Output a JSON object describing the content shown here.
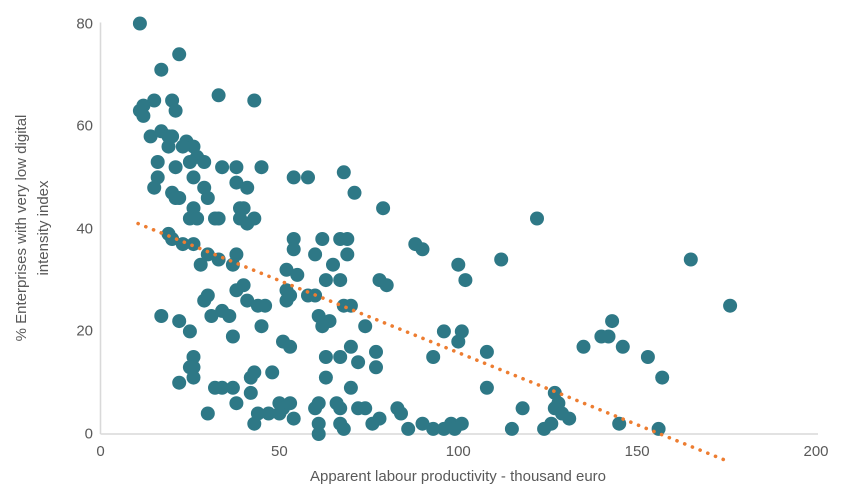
{
  "chart_data": {
    "type": "scatter",
    "title": "",
    "xlabel": "Apparent labour productivity - thousand euro",
    "ylabel": "% Enterprises with very low digital intensity index",
    "ylabel_line1": "% Enterprises with very low digital",
    "ylabel_line2": "intensity index",
    "xlim": [
      0,
      200
    ],
    "ylim": [
      0,
      80
    ],
    "x_ticks": [
      {
        "value": 0,
        "label": "0"
      },
      {
        "value": 50,
        "label": "50"
      },
      {
        "value": 100,
        "label": "100"
      },
      {
        "value": 150,
        "label": "150"
      },
      {
        "value": 200,
        "label": "200"
      }
    ],
    "y_ticks": [
      {
        "value": 0,
        "label": "0"
      },
      {
        "value": 20,
        "label": "20"
      },
      {
        "value": 40,
        "label": "40"
      },
      {
        "value": 60,
        "label": "60"
      },
      {
        "value": 80,
        "label": "80"
      }
    ],
    "grid": false,
    "legend_position": "none",
    "colors": {
      "points": "#2e7886",
      "trendline": "#ed7d31",
      "axis_line": "#d9d9d9",
      "text": "#595959",
      "background": "#ffffff"
    },
    "point_radius_px": 7,
    "points": [
      [
        11,
        80
      ],
      [
        22,
        74
      ],
      [
        17,
        71
      ],
      [
        15,
        65
      ],
      [
        12,
        64
      ],
      [
        11,
        63
      ],
      [
        12,
        62
      ],
      [
        20,
        65
      ],
      [
        21,
        63
      ],
      [
        33,
        66
      ],
      [
        43,
        65
      ],
      [
        14,
        58
      ],
      [
        17,
        59
      ],
      [
        19,
        58
      ],
      [
        20,
        58
      ],
      [
        24,
        57
      ],
      [
        26,
        56
      ],
      [
        19,
        56
      ],
      [
        23,
        56
      ],
      [
        27,
        54
      ],
      [
        16,
        53
      ],
      [
        21,
        52
      ],
      [
        25,
        53
      ],
      [
        29,
        53
      ],
      [
        34,
        52
      ],
      [
        38,
        52
      ],
      [
        45,
        52
      ],
      [
        16,
        50
      ],
      [
        26,
        50
      ],
      [
        38,
        49
      ],
      [
        41,
        48
      ],
      [
        15,
        48
      ],
      [
        20,
        47
      ],
      [
        21,
        46
      ],
      [
        22,
        46
      ],
      [
        29,
        48
      ],
      [
        30,
        46
      ],
      [
        26,
        44
      ],
      [
        25,
        42
      ],
      [
        27,
        42
      ],
      [
        32,
        42
      ],
      [
        33,
        42
      ],
      [
        39,
        44
      ],
      [
        40,
        44
      ],
      [
        39,
        42
      ],
      [
        41,
        41
      ],
      [
        43,
        42
      ],
      [
        19,
        39
      ],
      [
        20,
        38
      ],
      [
        23,
        37
      ],
      [
        26,
        37
      ],
      [
        30,
        35
      ],
      [
        33,
        34
      ],
      [
        38,
        35
      ],
      [
        28,
        33
      ],
      [
        37,
        33
      ],
      [
        17,
        23
      ],
      [
        22,
        22
      ],
      [
        25,
        20
      ],
      [
        29,
        26
      ],
      [
        30,
        27
      ],
      [
        31,
        23
      ],
      [
        34,
        24
      ],
      [
        36,
        23
      ],
      [
        40,
        29
      ],
      [
        38,
        28
      ],
      [
        41,
        26
      ],
      [
        44,
        25
      ],
      [
        46,
        25
      ],
      [
        45,
        21
      ],
      [
        37,
        19
      ],
      [
        26,
        15
      ],
      [
        26,
        13
      ],
      [
        25,
        13
      ],
      [
        22,
        10
      ],
      [
        26,
        11
      ],
      [
        32,
        9
      ],
      [
        34,
        9
      ],
      [
        37,
        9
      ],
      [
        38,
        6
      ],
      [
        30,
        4
      ],
      [
        42,
        11
      ],
      [
        43,
        12
      ],
      [
        48,
        12
      ],
      [
        42,
        8
      ],
      [
        44,
        4
      ],
      [
        47,
        4
      ],
      [
        43,
        2
      ],
      [
        54,
        50
      ],
      [
        58,
        50
      ],
      [
        68,
        51
      ],
      [
        71,
        47
      ],
      [
        79,
        44
      ],
      [
        54,
        38
      ],
      [
        54,
        36
      ],
      [
        62,
        38
      ],
      [
        67,
        38
      ],
      [
        69,
        38
      ],
      [
        60,
        35
      ],
      [
        69,
        35
      ],
      [
        65,
        33
      ],
      [
        52,
        32
      ],
      [
        55,
        31
      ],
      [
        63,
        30
      ],
      [
        67,
        30
      ],
      [
        78,
        30
      ],
      [
        80,
        29
      ],
      [
        88,
        37
      ],
      [
        90,
        36
      ],
      [
        52,
        28
      ],
      [
        52,
        26
      ],
      [
        53,
        27
      ],
      [
        58,
        27
      ],
      [
        60,
        27
      ],
      [
        68,
        25
      ],
      [
        70,
        25
      ],
      [
        61,
        23
      ],
      [
        64,
        22
      ],
      [
        62,
        21
      ],
      [
        74,
        21
      ],
      [
        51,
        18
      ],
      [
        53,
        17
      ],
      [
        63,
        15
      ],
      [
        67,
        15
      ],
      [
        70,
        17
      ],
      [
        72,
        14
      ],
      [
        77,
        16
      ],
      [
        77,
        13
      ],
      [
        63,
        11
      ],
      [
        70,
        9
      ],
      [
        50,
        6
      ],
      [
        53,
        6
      ],
      [
        51,
        5
      ],
      [
        50,
        4
      ],
      [
        54,
        3
      ],
      [
        60,
        5
      ],
      [
        61,
        6
      ],
      [
        61,
        2
      ],
      [
        61,
        0
      ],
      [
        66,
        6
      ],
      [
        67,
        5
      ],
      [
        67,
        2
      ],
      [
        68,
        1
      ],
      [
        72,
        5
      ],
      [
        74,
        5
      ],
      [
        76,
        2
      ],
      [
        78,
        3
      ],
      [
        83,
        5
      ],
      [
        84,
        4
      ],
      [
        86,
        1
      ],
      [
        90,
        2
      ],
      [
        93,
        1
      ],
      [
        96,
        1
      ],
      [
        98,
        2
      ],
      [
        93,
        15
      ],
      [
        96,
        20
      ],
      [
        122,
        42
      ],
      [
        112,
        34
      ],
      [
        100,
        33
      ],
      [
        102,
        30
      ],
      [
        101,
        20
      ],
      [
        100,
        18
      ],
      [
        108,
        16
      ],
      [
        108,
        9
      ],
      [
        118,
        5
      ],
      [
        127,
        8
      ],
      [
        128,
        6
      ],
      [
        127,
        5
      ],
      [
        129,
        4
      ],
      [
        126,
        2
      ],
      [
        131,
        3
      ],
      [
        124,
        1
      ],
      [
        115,
        1
      ],
      [
        101,
        2
      ],
      [
        99,
        1
      ],
      [
        135,
        17
      ],
      [
        143,
        22
      ],
      [
        140,
        19
      ],
      [
        142,
        19
      ],
      [
        146,
        17
      ],
      [
        145,
        2
      ],
      [
        165,
        34
      ],
      [
        176,
        25
      ],
      [
        153,
        15
      ],
      [
        157,
        11
      ],
      [
        156,
        1
      ]
    ],
    "trendline": {
      "style": "dotted",
      "x_start": 10.5,
      "y_start": 41,
      "x_end": 176,
      "y_end": -5.5
    }
  }
}
